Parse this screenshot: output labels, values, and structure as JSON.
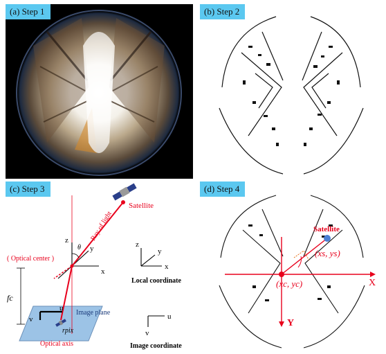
{
  "panel_a": {
    "tag": "(a) Step 1"
  },
  "panel_b": {
    "tag": "(b) Step 2"
  },
  "panel_c": {
    "tag": "(c) Step 3",
    "satellite": "Satellite",
    "ray": "Ray of light",
    "optical_center": "( Optical center )",
    "z": "z",
    "y": "y",
    "x": "x",
    "theta": "θ",
    "fc": "fc",
    "u": "u",
    "v": "v",
    "image_plane": "Image plane",
    "rpix": "rpix",
    "optical_axis": "Optical axis",
    "local_coordinate": "Local coordinate",
    "image_coordinate": "Image coordinate",
    "lz": "z",
    "ly": "y",
    "lx": "x",
    "iu": "u",
    "iv": "v"
  },
  "panel_d": {
    "tag": "(d) Step 4",
    "satellite": "Satellite",
    "xs_ys": "(xs, ys)",
    "xc_yc": "(xc, yc)",
    "X": "X",
    "Y": "Y"
  },
  "colors": {
    "accent_red": "#e8001c",
    "tag_bg": "#5bc8f0",
    "plane_blue": "#9cc3e6",
    "sat_blue": "#4a7fd4"
  }
}
